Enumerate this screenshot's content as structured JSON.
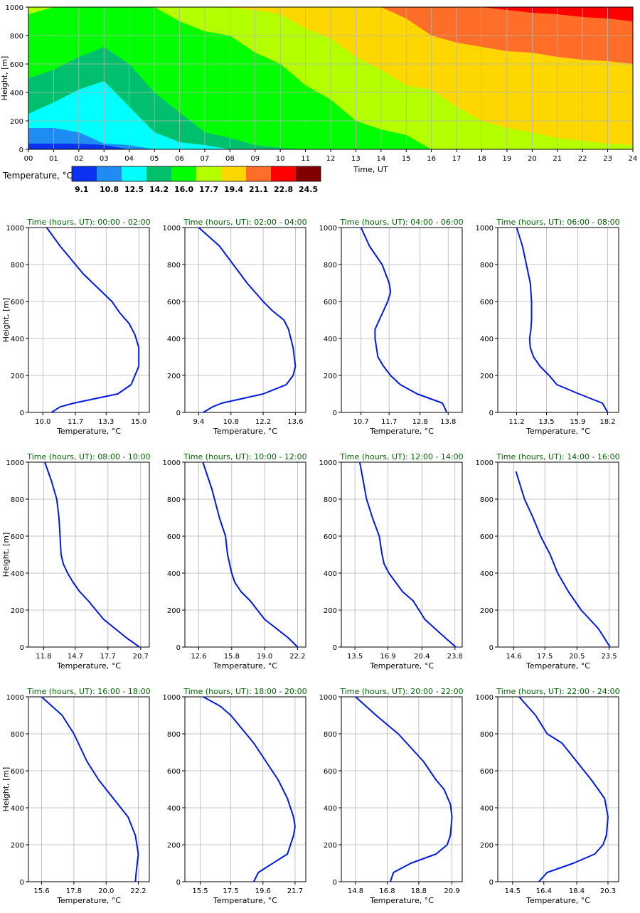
{
  "colors": {
    "profile_line": "#0019e6",
    "subplot_title": "#006400",
    "grid": "#b4b4b4"
  },
  "chart_data": [
    {
      "type": "heatmap",
      "xlabel": "Time, UT",
      "ylabel": "Height, [m]",
      "xlim": [
        0,
        24
      ],
      "ylim": [
        0,
        1000
      ],
      "x_ticks": [
        "00",
        "01",
        "02",
        "03",
        "04",
        "05",
        "06",
        "07",
        "08",
        "09",
        "10",
        "11",
        "12",
        "13",
        "14",
        "15",
        "16",
        "17",
        "18",
        "19",
        "20",
        "21",
        "22",
        "23",
        "24"
      ],
      "y_ticks": [
        "0",
        "200",
        "400",
        "600",
        "800",
        "1000"
      ],
      "grid": true,
      "legend": {
        "title": "Temperature, °C",
        "placement": "bottom-left",
        "colors": [
          "#0a32f0",
          "#1e8cf0",
          "#00ffff",
          "#00c06e",
          "#00ff00",
          "#b4ff00",
          "#ffd700",
          "#ff6e28",
          "#ff0000",
          "#800000"
        ],
        "labels": [
          "9.1",
          "10.8",
          "12.5",
          "14.2",
          "16.0",
          "17.7",
          "19.4",
          "21.1",
          "22.8",
          "24.5"
        ]
      },
      "level_edges_per_hour": {
        "hours": [
          0,
          1,
          2,
          3,
          4,
          5,
          6,
          7,
          8,
          9,
          10,
          11,
          12,
          13,
          14,
          15,
          16,
          17,
          18,
          19,
          20,
          21,
          22,
          23,
          24
        ],
        "level_1_top_m": [
          40,
          40,
          40,
          30,
          0,
          0,
          0,
          0,
          0,
          0,
          0,
          0,
          0,
          0,
          0,
          0,
          0,
          0,
          0,
          0,
          0,
          0,
          0,
          0,
          0
        ],
        "level_2_top_m": [
          150,
          150,
          120,
          40,
          30,
          0,
          0,
          0,
          0,
          0,
          0,
          0,
          0,
          0,
          0,
          0,
          0,
          0,
          0,
          0,
          0,
          0,
          0,
          0,
          0
        ],
        "level_3_top_m": [
          250,
          330,
          420,
          480,
          300,
          120,
          50,
          30,
          0,
          0,
          0,
          0,
          0,
          0,
          0,
          0,
          0,
          0,
          0,
          0,
          0,
          0,
          0,
          0,
          0
        ],
        "level_4_top_m": [
          500,
          560,
          650,
          720,
          600,
          400,
          260,
          120,
          80,
          30,
          10,
          0,
          0,
          0,
          0,
          0,
          0,
          0,
          0,
          0,
          0,
          0,
          0,
          0,
          0
        ],
        "level_5_top_m": [
          950,
          1000,
          1000,
          1000,
          1000,
          1000,
          900,
          830,
          800,
          680,
          600,
          450,
          350,
          200,
          140,
          100,
          0,
          0,
          0,
          0,
          0,
          0,
          0,
          0,
          0
        ],
        "level_6_top_m": [
          1000,
          1000,
          1000,
          1000,
          1000,
          1000,
          1000,
          1000,
          1000,
          980,
          950,
          850,
          780,
          650,
          560,
          450,
          420,
          300,
          200,
          150,
          120,
          80,
          60,
          40,
          30
        ],
        "level_7_top_m": [
          1000,
          1000,
          1000,
          1000,
          1000,
          1000,
          1000,
          1000,
          1000,
          1000,
          1000,
          1000,
          1000,
          1000,
          1000,
          920,
          800,
          750,
          720,
          690,
          680,
          650,
          630,
          620,
          600
        ],
        "level_8_top_m": [
          1000,
          1000,
          1000,
          1000,
          1000,
          1000,
          1000,
          1000,
          1000,
          1000,
          1000,
          1000,
          1000,
          1000,
          1000,
          1000,
          1000,
          1000,
          1000,
          980,
          960,
          950,
          930,
          920,
          900
        ],
        "level_9_top_m": [
          1000,
          1000,
          1000,
          1000,
          1000,
          1000,
          1000,
          1000,
          1000,
          1000,
          1000,
          1000,
          1000,
          1000,
          1000,
          1000,
          1000,
          1000,
          1000,
          1000,
          1000,
          1000,
          1000,
          1000,
          1000
        ]
      }
    },
    {
      "type": "line",
      "title": "Time (hours, UT): 00:00 - 02:00",
      "xlabel": "Temperature, °C",
      "ylabel": "Height, [m]",
      "x_ticks": [
        "10.0",
        "11.7",
        "13.3",
        "15.0"
      ],
      "xlim": [
        9.25,
        15.55
      ],
      "ylim": [
        0,
        1000
      ],
      "x": [
        10.45,
        10.9,
        11.6,
        13.9,
        14.6,
        14.8,
        15.0,
        15.0,
        14.8,
        14.5,
        14.0,
        13.6,
        13.1,
        12.1,
        11.3,
        10.9,
        10.2
      ],
      "y": [
        0,
        30,
        50,
        100,
        150,
        200,
        250,
        350,
        420,
        480,
        540,
        600,
        650,
        750,
        850,
        900,
        1000
      ]
    },
    {
      "type": "line",
      "title": "Time (hours, UT): 02:00 - 04:00",
      "xlabel": "Temperature, °C",
      "ylabel": "",
      "x_ticks": [
        "9.4",
        "10.8",
        "12.2",
        "13.6"
      ],
      "xlim": [
        8.8,
        14.05
      ],
      "ylim": [
        0,
        1000
      ],
      "x": [
        9.6,
        10.0,
        10.4,
        12.2,
        13.2,
        13.5,
        13.6,
        13.5,
        13.3,
        13.1,
        12.6,
        12.2,
        11.5,
        10.3,
        9.4
      ],
      "y": [
        0,
        30,
        50,
        100,
        150,
        200,
        250,
        350,
        450,
        500,
        550,
        600,
        700,
        900,
        1000
      ]
    },
    {
      "type": "line",
      "title": "Time (hours, UT): 04:00 - 06:00",
      "xlabel": "Temperature, °C",
      "ylabel": "",
      "x_ticks": [
        "10.7",
        "11.7",
        "12.8",
        "13.8"
      ],
      "xlim": [
        10.0,
        14.3
      ],
      "ylim": [
        0,
        1000
      ],
      "x": [
        13.75,
        13.6,
        12.7,
        12.1,
        11.75,
        11.5,
        11.3,
        11.2,
        11.2,
        11.35,
        11.65,
        11.75,
        11.7,
        11.45,
        11.0,
        10.7
      ],
      "y": [
        0,
        50,
        100,
        150,
        200,
        250,
        300,
        400,
        450,
        500,
        600,
        650,
        700,
        800,
        900,
        1000
      ]
    },
    {
      "type": "line",
      "title": "Time (hours, UT): 06:00 - 08:00",
      "xlabel": "Temperature, °C",
      "ylabel": "",
      "x_ticks": [
        "11.2",
        "13.5",
        "15.9",
        "18.2"
      ],
      "xlim": [
        9.75,
        19.05
      ],
      "ylim": [
        0,
        1000
      ],
      "x": [
        18.2,
        17.8,
        16.0,
        14.3,
        13.7,
        13.0,
        12.5,
        12.25,
        12.2,
        12.3,
        12.35,
        12.35,
        12.25,
        11.95,
        11.65,
        11.2
      ],
      "y": [
        0,
        50,
        100,
        150,
        200,
        250,
        300,
        350,
        400,
        450,
        500,
        600,
        700,
        800,
        900,
        1000
      ]
    },
    {
      "type": "line",
      "title": "Time (hours, UT): 08:00 - 10:00",
      "xlabel": "Temperature, °C",
      "ylabel": "Height, [m]",
      "x_ticks": [
        "11.8",
        "14.7",
        "17.7",
        "20.7"
      ],
      "xlim": [
        10.4,
        21.5
      ],
      "ylim": [
        0,
        1000
      ],
      "x": [
        20.6,
        19.4,
        17.3,
        15.9,
        15.1,
        14.5,
        14.0,
        13.6,
        13.4,
        13.3,
        13.2,
        13.0,
        12.5,
        11.9
      ],
      "y": [
        0,
        50,
        150,
        250,
        300,
        350,
        400,
        450,
        500,
        600,
        700,
        800,
        900,
        1000
      ]
    },
    {
      "type": "line",
      "title": "Time (hours, UT): 10:00 - 12:00",
      "xlabel": "Temperature, °C",
      "ylabel": "",
      "x_ticks": [
        "12.6",
        "15.8",
        "19.0",
        "22.2"
      ],
      "xlim": [
        11.25,
        23.0
      ],
      "ylim": [
        0,
        1000
      ],
      "x": [
        22.2,
        21.3,
        19.0,
        17.6,
        16.7,
        16.1,
        15.8,
        15.6,
        15.4,
        15.2,
        14.6,
        13.9,
        13.0
      ],
      "y": [
        0,
        50,
        150,
        250,
        300,
        350,
        400,
        450,
        500,
        600,
        700,
        850,
        1000
      ]
    },
    {
      "type": "line",
      "title": "Time (hours, UT): 12:00 - 14:00",
      "xlabel": "Temperature, °C",
      "ylabel": "",
      "x_ticks": [
        "13.5",
        "16.9",
        "20.4",
        "23.8"
      ],
      "xlim": [
        12.1,
        24.55
      ],
      "ylim": [
        0,
        1000
      ],
      "x": [
        23.9,
        22.8,
        20.7,
        19.5,
        18.4,
        17.7,
        17.0,
        16.5,
        16.3,
        16.0,
        15.3,
        14.7,
        14.0
      ],
      "y": [
        0,
        50,
        150,
        250,
        300,
        350,
        400,
        450,
        500,
        600,
        700,
        800,
        1000
      ]
    },
    {
      "type": "line",
      "title": "Time (hours, UT): 14:00 - 16:00",
      "xlabel": "Temperature, °C",
      "ylabel": "",
      "x_ticks": [
        "14.6",
        "17.5",
        "20.5",
        "23.5"
      ],
      "xlim": [
        13.1,
        24.4
      ],
      "ylim": [
        0,
        1000
      ],
      "x": [
        23.6,
        22.5,
        20.9,
        19.7,
        18.7,
        18.0,
        17.1,
        16.4,
        15.6,
        14.8
      ],
      "y": [
        0,
        100,
        200,
        300,
        400,
        500,
        600,
        700,
        800,
        950
      ]
    },
    {
      "type": "line",
      "title": "Time (hours, UT): 16:00 - 18:00",
      "xlabel": "Temperature, °C",
      "ylabel": "Height, [m]",
      "x_ticks": [
        "15.6",
        "17.8",
        "20.0",
        "22.2"
      ],
      "xlim": [
        14.7,
        22.95
      ],
      "ylim": [
        0,
        1000
      ],
      "x": [
        22.0,
        22.05,
        22.2,
        22.0,
        21.5,
        21.0,
        20.5,
        19.5,
        18.7,
        17.8,
        17.0,
        15.6
      ],
      "y": [
        0,
        50,
        150,
        250,
        350,
        400,
        450,
        550,
        650,
        800,
        900,
        1000
      ]
    },
    {
      "type": "line",
      "title": "Time (hours, UT): 18:00 - 20:00",
      "xlabel": "Temperature, °C",
      "ylabel": "",
      "x_ticks": [
        "15.5",
        "17.5",
        "19.6",
        "21.7"
      ],
      "xlim": [
        14.5,
        22.4
      ],
      "ylim": [
        0,
        1000
      ],
      "x": [
        19.0,
        19.3,
        21.2,
        21.6,
        21.7,
        21.6,
        21.2,
        20.6,
        19.8,
        19.0,
        17.5,
        16.8,
        15.7
      ],
      "y": [
        0,
        50,
        150,
        250,
        300,
        350,
        450,
        550,
        650,
        750,
        900,
        950,
        1000
      ]
    },
    {
      "type": "line",
      "title": "Time (hours, UT): 20:00 - 22:00",
      "xlabel": "Temperature, °C",
      "ylabel": "",
      "x_ticks": [
        "14.8",
        "16.8",
        "18.8",
        "20.9"
      ],
      "xlim": [
        13.9,
        21.55
      ],
      "ylim": [
        0,
        1000
      ],
      "x": [
        17.0,
        17.2,
        18.3,
        19.9,
        20.6,
        20.8,
        20.9,
        20.8,
        20.4,
        19.9,
        19.1,
        17.5,
        16.1,
        14.8
      ],
      "y": [
        0,
        50,
        100,
        150,
        200,
        250,
        350,
        420,
        500,
        550,
        650,
        800,
        900,
        1000
      ]
    },
    {
      "type": "line",
      "title": "Time (hours, UT): 22:00 - 24:00",
      "xlabel": "Temperature, °C",
      "ylabel": "",
      "x_ticks": [
        "14.5",
        "16.4",
        "18.4",
        "20.3"
      ],
      "xlim": [
        13.6,
        20.95
      ],
      "ylim": [
        0,
        1000
      ],
      "x": [
        16.1,
        16.6,
        18.2,
        19.5,
        20.0,
        20.2,
        20.3,
        20.1,
        19.3,
        18.4,
        17.5,
        16.6,
        15.9,
        14.9
      ],
      "y": [
        0,
        50,
        100,
        150,
        200,
        250,
        350,
        450,
        550,
        650,
        750,
        800,
        900,
        1000
      ]
    }
  ]
}
